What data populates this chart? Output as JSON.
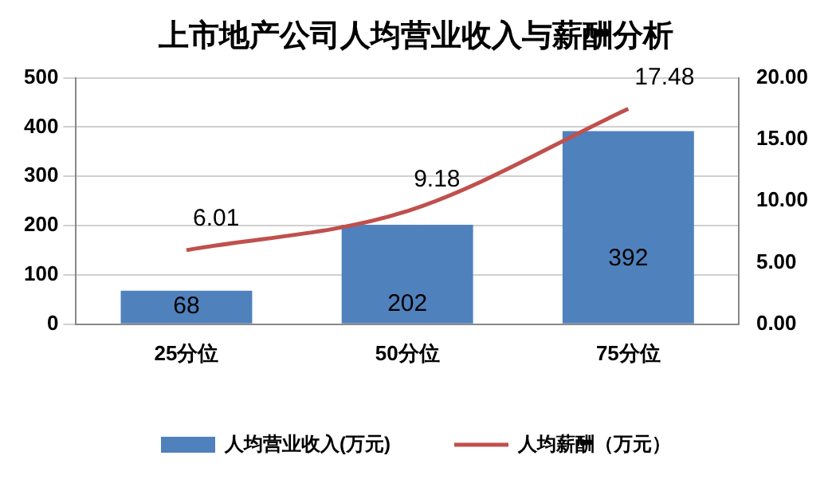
{
  "chart_data": {
    "type": "bar",
    "title": "上市地产公司人均营业收入与薪酬分析",
    "categories": [
      "25分位",
      "50分位",
      "75分位"
    ],
    "series": [
      {
        "name": "人均营业收入(万元)",
        "color": "#4f81bd",
        "values": [
          68,
          202,
          392
        ]
      },
      {
        "name": "人均薪酬（万元）",
        "color": "#c0504d",
        "values": [
          6.01,
          9.18,
          17.48
        ],
        "type": "line",
        "axis": "y2"
      }
    ],
    "ylim": [
      0,
      500
    ],
    "yticks": [
      0,
      100,
      200,
      300,
      400,
      500
    ],
    "y2lim": [
      0,
      20
    ],
    "y2ticks": [
      {
        "value": 0,
        "label": "0.00"
      },
      {
        "value": 5,
        "label": "5.00"
      },
      {
        "value": 10,
        "label": "10.00"
      },
      {
        "value": 15,
        "label": "15.00"
      },
      {
        "value": 20,
        "label": "20.00"
      }
    ],
    "grid": "y",
    "legend": "bottom",
    "data_labels": true,
    "marker": "none"
  }
}
